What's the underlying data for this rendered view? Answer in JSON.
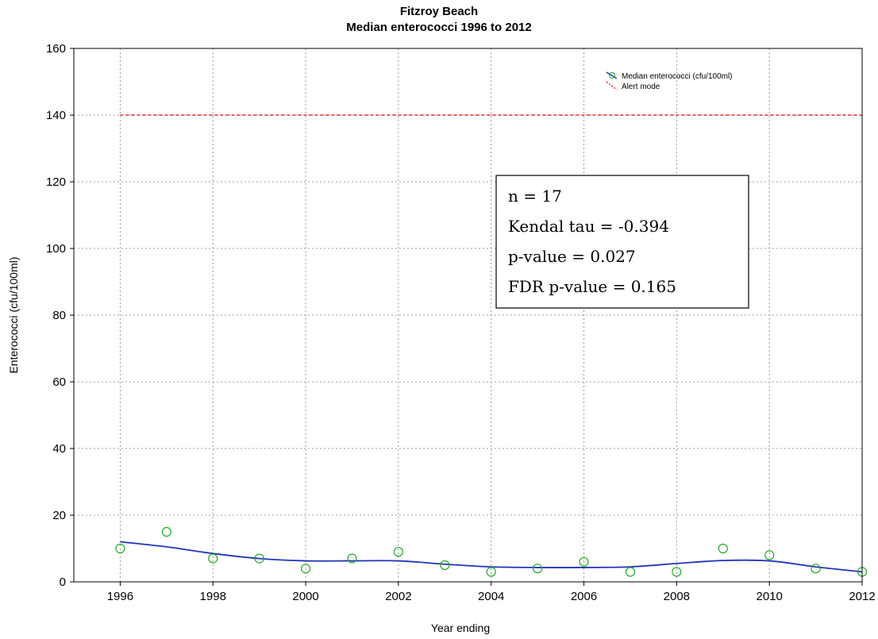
{
  "chart_data": {
    "type": "scatter",
    "title": "Fitzroy Beach",
    "subtitle": "Median enterococci 1996 to 2012",
    "xlabel": "Year ending",
    "ylabel": "Enterococci (cfu/100ml)",
    "xlim": [
      1995,
      2012
    ],
    "ylim": [
      0,
      160
    ],
    "xticks": [
      1996,
      1998,
      2000,
      2002,
      2004,
      2006,
      2008,
      2010,
      2012
    ],
    "yticks": [
      0,
      20,
      40,
      60,
      80,
      100,
      120,
      140,
      160
    ],
    "grid": true,
    "legend_position": "top-right",
    "series": [
      {
        "name": "Median enterococci (cfu/100ml)",
        "kind": "scatter-with-smooth-fit",
        "color": "#22aa22",
        "fit_color": "#2233bb",
        "x": [
          1996,
          1997,
          1998,
          1999,
          2000,
          2001,
          2002,
          2003,
          2004,
          2005,
          2006,
          2007,
          2008,
          2009,
          2010,
          2011,
          2012
        ],
        "y": [
          10,
          15,
          7,
          7,
          4,
          7,
          9,
          5,
          3,
          4,
          6,
          3,
          3,
          10,
          8,
          4,
          3
        ],
        "fit": [
          12,
          10.5,
          8.5,
          7,
          6.3,
          6.3,
          6.3,
          5.3,
          4.5,
          4.3,
          4.3,
          4.5,
          5.5,
          6.4,
          6.3,
          4.5,
          3
        ]
      },
      {
        "name": "Alert mode",
        "kind": "hline",
        "color": "#dd0000",
        "y": 140,
        "x_range": [
          1996,
          2012
        ]
      }
    ],
    "annotation": {
      "lines": [
        "n = 17",
        "Kendal tau = -0.394",
        "p-value = 0.027",
        "FDR p-value = 0.165"
      ]
    }
  }
}
